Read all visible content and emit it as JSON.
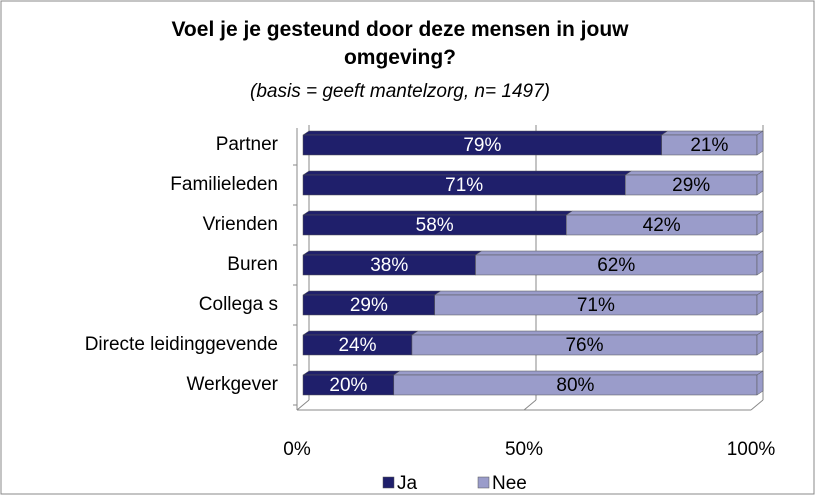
{
  "chart_data": {
    "type": "stacked_bar_horizontal",
    "title": "Voel je je gesteund door deze mensen in jouw omgeving?",
    "subtitle": "(basis = geeft mantelzorg, n= 1497)",
    "categories": [
      "Partner",
      "Familieleden",
      "Vrienden",
      "Buren",
      "Collega s",
      "Directe leidinggevende",
      "Werkgever"
    ],
    "series": [
      {
        "name": "Ja",
        "color": "#1f1f6b",
        "values": [
          79,
          71,
          58,
          38,
          29,
          24,
          20
        ],
        "value_labels": [
          "79%",
          "71%",
          "58%",
          "38%",
          "29%",
          "24%",
          "20%"
        ]
      },
      {
        "name": "Nee",
        "color": "#9a9cca",
        "values": [
          21,
          29,
          42,
          62,
          71,
          76,
          80
        ],
        "value_labels": [
          "21%",
          "29%",
          "42%",
          "62%",
          "71%",
          "76%",
          "80%"
        ]
      }
    ],
    "xlim": [
      0,
      100
    ],
    "xticks": [
      {
        "value": 0,
        "label": "0%"
      },
      {
        "value": 50,
        "label": "50%"
      },
      {
        "value": 100,
        "label": "100%"
      }
    ],
    "grid": true,
    "legend": "bottom"
  }
}
